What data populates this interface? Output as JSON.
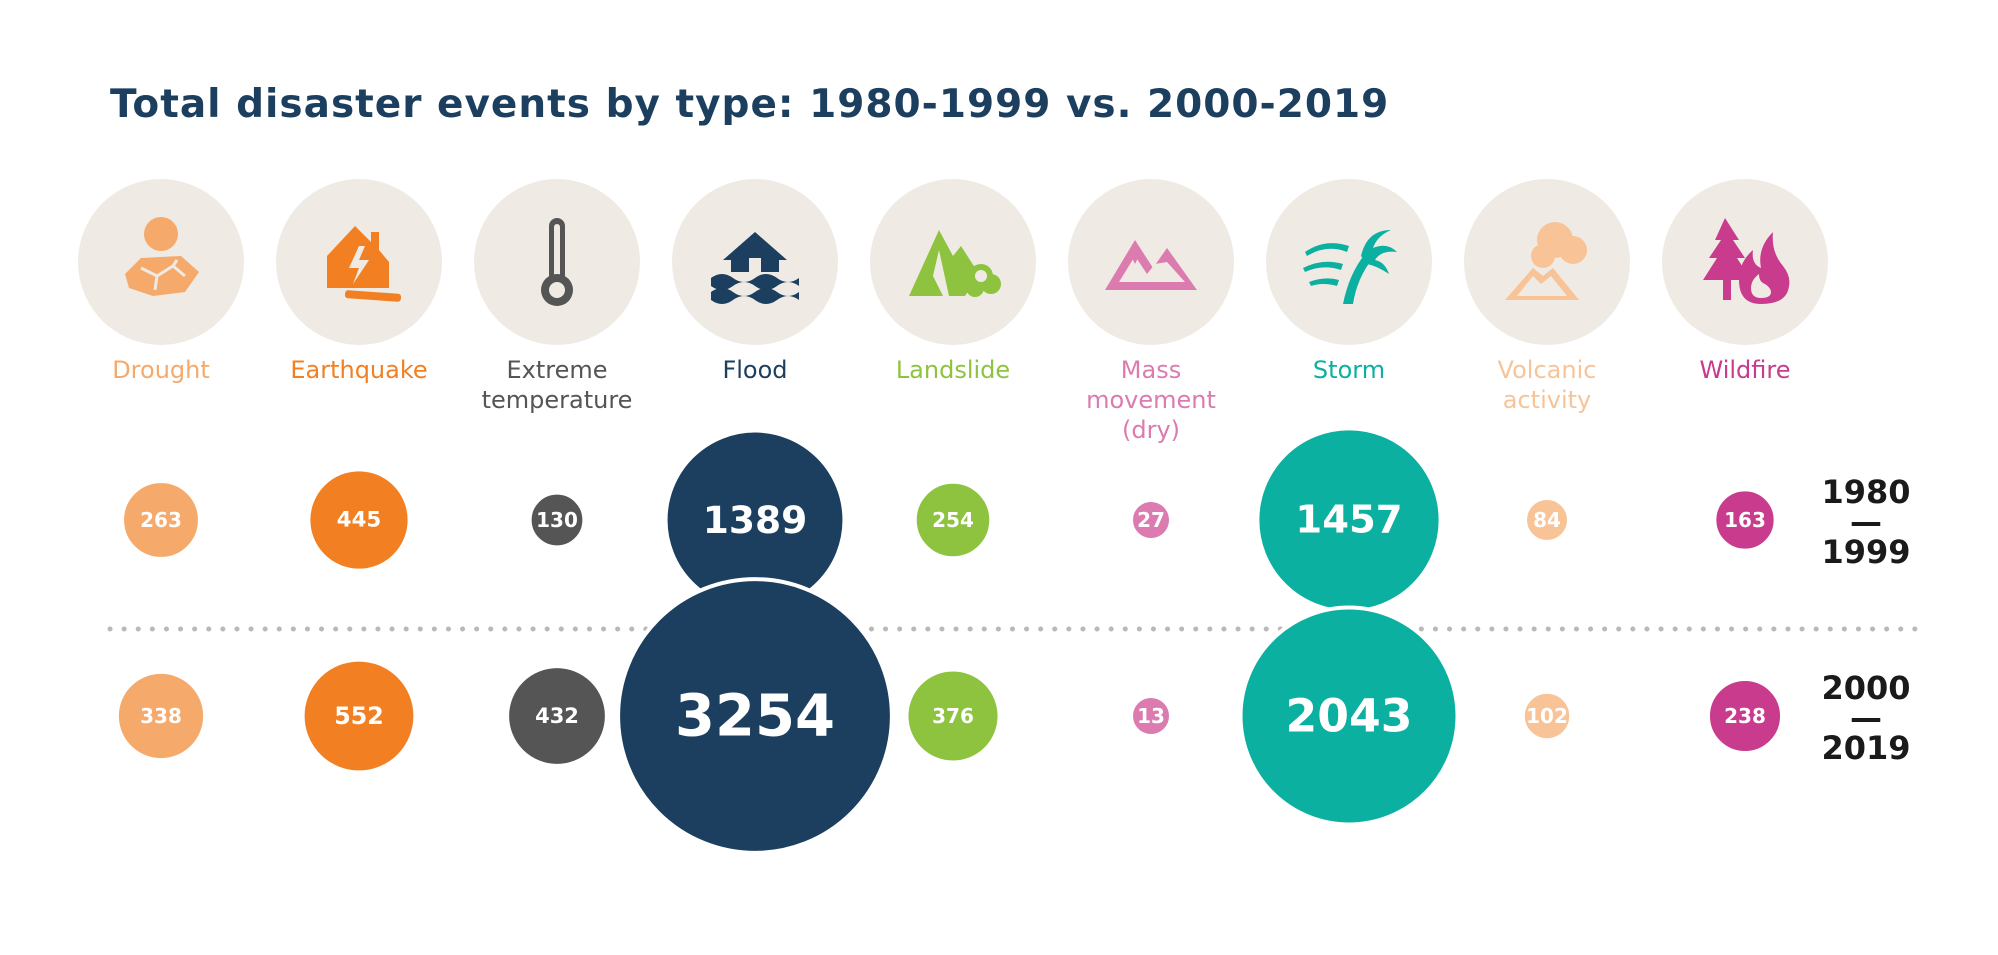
{
  "title": "Total disaster events by type: 1980-1999 vs. 2000-2019",
  "chart_data": {
    "type": "bubble",
    "title": "Total disaster events by type: 1980-1999 vs. 2000-2019",
    "categories": [
      {
        "label": "Drought",
        "label_lines": [
          "Drought"
        ],
        "color": "#f5a96a",
        "icon": "drought-icon"
      },
      {
        "label": "Earthquake",
        "label_lines": [
          "Earthquake"
        ],
        "color": "#f28023",
        "icon": "earthquake-icon"
      },
      {
        "label": "Extreme temperature",
        "label_lines": [
          "Extreme",
          "temperature"
        ],
        "color": "#555555",
        "icon": "thermometer-icon"
      },
      {
        "label": "Flood",
        "label_lines": [
          "Flood"
        ],
        "color": "#1c3f5f",
        "icon": "flood-icon"
      },
      {
        "label": "Landslide",
        "label_lines": [
          "Landslide"
        ],
        "color": "#8dc33f",
        "icon": "landslide-icon"
      },
      {
        "label": "Mass movement (dry)",
        "label_lines": [
          "Mass",
          "movement",
          "(dry)"
        ],
        "color": "#db7bb0",
        "icon": "mass-movement-icon"
      },
      {
        "label": "Storm",
        "label_lines": [
          "Storm"
        ],
        "color": "#0cb0a0",
        "icon": "storm-icon"
      },
      {
        "label": "Volcanic activity",
        "label_lines": [
          "Volcanic",
          "activity"
        ],
        "color": "#f8c497",
        "icon": "volcano-icon"
      },
      {
        "label": "Wildfire",
        "label_lines": [
          "Wildfire"
        ],
        "color": "#c93b8c",
        "icon": "wildfire-icon"
      }
    ],
    "series": [
      {
        "name": "1980 — 1999",
        "name_lines": [
          "1980",
          "—",
          "1999"
        ],
        "values": [
          263,
          445,
          130,
          1389,
          254,
          27,
          1457,
          84,
          163
        ]
      },
      {
        "name": "2000 — 2019",
        "name_lines": [
          "2000",
          "—",
          "2019"
        ],
        "values": [
          338,
          552,
          432,
          3254,
          376,
          13,
          2043,
          102,
          238
        ]
      }
    ],
    "divider": "dotted"
  }
}
